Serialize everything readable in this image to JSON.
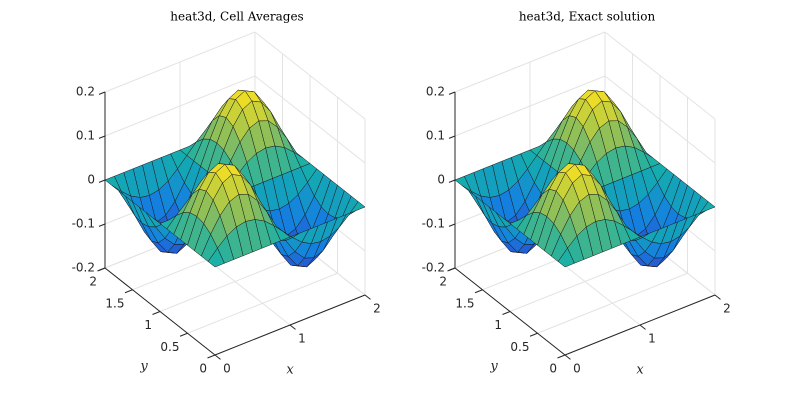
{
  "chart_data": [
    {
      "type": "surface",
      "title": "heat3d, Cell Averages",
      "xlabel": "x",
      "ylabel": "y",
      "x": [
        0,
        0.125,
        0.25,
        0.375,
        0.5,
        0.625,
        0.75,
        0.875,
        1,
        1.125,
        1.25,
        1.375,
        1.5,
        1.625,
        1.75,
        1.875,
        2
      ],
      "y": [
        0,
        0.125,
        0.25,
        0.375,
        0.5,
        0.625,
        0.75,
        0.875,
        1,
        1.125,
        1.25,
        1.375,
        1.5,
        1.625,
        1.75,
        1.875,
        2
      ],
      "z": [
        [
          0,
          0,
          0,
          0,
          0,
          0,
          0,
          0,
          0,
          0,
          0,
          0,
          0,
          0,
          0,
          0,
          0
        ],
        [
          0,
          0.022,
          0.041,
          0.053,
          0.057,
          0.053,
          0.041,
          0.022,
          0,
          -0.022,
          -0.041,
          -0.053,
          -0.057,
          -0.053,
          -0.041,
          -0.022,
          0
        ],
        [
          0,
          0.041,
          0.075,
          0.098,
          0.106,
          0.098,
          0.075,
          0.041,
          0,
          -0.041,
          -0.075,
          -0.098,
          -0.106,
          -0.098,
          -0.075,
          -0.041,
          0
        ],
        [
          0,
          0.053,
          0.098,
          0.128,
          0.139,
          0.128,
          0.098,
          0.053,
          0,
          -0.053,
          -0.098,
          -0.128,
          -0.139,
          -0.128,
          -0.098,
          -0.053,
          0
        ],
        [
          0,
          0.057,
          0.106,
          0.139,
          0.15,
          0.139,
          0.106,
          0.057,
          0,
          -0.057,
          -0.106,
          -0.139,
          -0.15,
          -0.139,
          -0.106,
          -0.057,
          0
        ],
        [
          0,
          0.053,
          0.098,
          0.128,
          0.139,
          0.128,
          0.098,
          0.053,
          0,
          -0.053,
          -0.098,
          -0.128,
          -0.139,
          -0.128,
          -0.098,
          -0.053,
          0
        ],
        [
          0,
          0.041,
          0.075,
          0.098,
          0.106,
          0.098,
          0.075,
          0.041,
          0,
          -0.041,
          -0.075,
          -0.098,
          -0.106,
          -0.098,
          -0.075,
          -0.041,
          0
        ],
        [
          0,
          0.022,
          0.041,
          0.053,
          0.057,
          0.053,
          0.041,
          0.022,
          0,
          -0.022,
          -0.041,
          -0.053,
          -0.057,
          -0.053,
          -0.041,
          -0.022,
          0
        ],
        [
          0,
          0,
          0,
          0,
          0,
          0,
          0,
          0,
          0,
          0,
          0,
          0,
          0,
          0,
          0,
          0,
          0
        ],
        [
          0,
          -0.022,
          -0.041,
          -0.053,
          -0.057,
          -0.053,
          -0.041,
          -0.022,
          0,
          0.022,
          0.041,
          0.053,
          0.057,
          0.053,
          0.041,
          0.022,
          0
        ],
        [
          0,
          -0.041,
          -0.075,
          -0.098,
          -0.106,
          -0.098,
          -0.075,
          -0.041,
          0,
          0.041,
          0.075,
          0.098,
          0.106,
          0.098,
          0.075,
          0.041,
          0
        ],
        [
          0,
          -0.053,
          -0.098,
          -0.128,
          -0.139,
          -0.128,
          -0.098,
          -0.053,
          0,
          0.053,
          0.098,
          0.128,
          0.139,
          0.128,
          0.098,
          0.053,
          0
        ],
        [
          0,
          -0.057,
          -0.106,
          -0.139,
          -0.15,
          -0.139,
          -0.106,
          -0.057,
          0,
          0.057,
          0.106,
          0.139,
          0.15,
          0.139,
          0.106,
          0.057,
          0
        ],
        [
          0,
          -0.053,
          -0.098,
          -0.128,
          -0.139,
          -0.128,
          -0.098,
          -0.053,
          0,
          0.053,
          0.098,
          0.128,
          0.139,
          0.128,
          0.098,
          0.053,
          0
        ],
        [
          0,
          -0.041,
          -0.075,
          -0.098,
          -0.106,
          -0.098,
          -0.075,
          -0.041,
          0,
          0.041,
          0.075,
          0.098,
          0.106,
          0.098,
          0.075,
          0.041,
          0
        ],
        [
          0,
          -0.022,
          -0.041,
          -0.053,
          -0.057,
          -0.053,
          -0.041,
          -0.022,
          0,
          0.022,
          0.041,
          0.053,
          0.057,
          0.053,
          0.041,
          0.022,
          0
        ],
        [
          0,
          0,
          0,
          0,
          0,
          0,
          0,
          0,
          0,
          0,
          0,
          0,
          0,
          0,
          0,
          0,
          0
        ]
      ],
      "xlim": [
        0,
        2
      ],
      "ylim": [
        0,
        2
      ],
      "zlim": [
        -0.2,
        0.2
      ],
      "xticks": [
        0,
        1,
        2
      ],
      "yticks": [
        0,
        0.5,
        1,
        1.5,
        2
      ],
      "zticks": [
        -0.2,
        -0.1,
        0,
        0.1,
        0.2
      ],
      "grid": true,
      "colormap": "parula"
    },
    {
      "type": "surface",
      "title": "heat3d, Exact solution",
      "xlabel": "x",
      "ylabel": "y",
      "x": [
        0,
        0.125,
        0.25,
        0.375,
        0.5,
        0.625,
        0.75,
        0.875,
        1,
        1.125,
        1.25,
        1.375,
        1.5,
        1.625,
        1.75,
        1.875,
        2
      ],
      "y": [
        0,
        0.125,
        0.25,
        0.375,
        0.5,
        0.625,
        0.75,
        0.875,
        1,
        1.125,
        1.25,
        1.375,
        1.5,
        1.625,
        1.75,
        1.875,
        2
      ],
      "z": [
        [
          0,
          0,
          0,
          0,
          0,
          0,
          0,
          0,
          0,
          0,
          0,
          0,
          0,
          0,
          0,
          0,
          0
        ],
        [
          0,
          0.022,
          0.041,
          0.053,
          0.057,
          0.053,
          0.041,
          0.022,
          0,
          -0.022,
          -0.041,
          -0.053,
          -0.057,
          -0.053,
          -0.041,
          -0.022,
          0
        ],
        [
          0,
          0.041,
          0.075,
          0.098,
          0.106,
          0.098,
          0.075,
          0.041,
          0,
          -0.041,
          -0.075,
          -0.098,
          -0.106,
          -0.098,
          -0.075,
          -0.041,
          0
        ],
        [
          0,
          0.053,
          0.098,
          0.128,
          0.139,
          0.128,
          0.098,
          0.053,
          0,
          -0.053,
          -0.098,
          -0.128,
          -0.139,
          -0.128,
          -0.098,
          -0.053,
          0
        ],
        [
          0,
          0.057,
          0.106,
          0.139,
          0.15,
          0.139,
          0.106,
          0.057,
          0,
          -0.057,
          -0.106,
          -0.139,
          -0.15,
          -0.139,
          -0.106,
          -0.057,
          0
        ],
        [
          0,
          0.053,
          0.098,
          0.128,
          0.139,
          0.128,
          0.098,
          0.053,
          0,
          -0.053,
          -0.098,
          -0.128,
          -0.139,
          -0.128,
          -0.098,
          -0.053,
          0
        ],
        [
          0,
          0.041,
          0.075,
          0.098,
          0.106,
          0.098,
          0.075,
          0.041,
          0,
          -0.041,
          -0.075,
          -0.098,
          -0.106,
          -0.098,
          -0.075,
          -0.041,
          0
        ],
        [
          0,
          0.022,
          0.041,
          0.053,
          0.057,
          0.053,
          0.041,
          0.022,
          0,
          -0.022,
          -0.041,
          -0.053,
          -0.057,
          -0.053,
          -0.041,
          -0.022,
          0
        ],
        [
          0,
          0,
          0,
          0,
          0,
          0,
          0,
          0,
          0,
          0,
          0,
          0,
          0,
          0,
          0,
          0,
          0
        ],
        [
          0,
          -0.022,
          -0.041,
          -0.053,
          -0.057,
          -0.053,
          -0.041,
          -0.022,
          0,
          0.022,
          0.041,
          0.053,
          0.057,
          0.053,
          0.041,
          0.022,
          0
        ],
        [
          0,
          -0.041,
          -0.075,
          -0.098,
          -0.106,
          -0.098,
          -0.075,
          -0.041,
          0,
          0.041,
          0.075,
          0.098,
          0.106,
          0.098,
          0.075,
          0.041,
          0
        ],
        [
          0,
          -0.053,
          -0.098,
          -0.128,
          -0.139,
          -0.128,
          -0.098,
          -0.053,
          0,
          0.053,
          0.098,
          0.128,
          0.139,
          0.128,
          0.098,
          0.053,
          0
        ],
        [
          0,
          -0.057,
          -0.106,
          -0.139,
          -0.15,
          -0.139,
          -0.106,
          -0.057,
          0,
          0.057,
          0.106,
          0.139,
          0.15,
          0.139,
          0.106,
          0.057,
          0
        ],
        [
          0,
          -0.053,
          -0.098,
          -0.128,
          -0.139,
          -0.128,
          -0.098,
          -0.053,
          0,
          0.053,
          0.098,
          0.128,
          0.139,
          0.128,
          0.098,
          0.053,
          0
        ],
        [
          0,
          -0.041,
          -0.075,
          -0.098,
          -0.106,
          -0.098,
          -0.075,
          -0.041,
          0,
          0.041,
          0.075,
          0.098,
          0.106,
          0.098,
          0.075,
          0.041,
          0
        ],
        [
          0,
          -0.022,
          -0.041,
          -0.053,
          -0.057,
          -0.053,
          -0.041,
          -0.022,
          0,
          0.022,
          0.041,
          0.053,
          0.057,
          0.053,
          0.041,
          0.022,
          0
        ],
        [
          0,
          0,
          0,
          0,
          0,
          0,
          0,
          0,
          0,
          0,
          0,
          0,
          0,
          0,
          0,
          0,
          0
        ]
      ],
      "xlim": [
        0,
        2
      ],
      "ylim": [
        0,
        2
      ],
      "zlim": [
        -0.2,
        0.2
      ],
      "xticks": [
        0,
        1,
        2
      ],
      "yticks": [
        0,
        0.5,
        1,
        1.5,
        2
      ],
      "zticks": [
        -0.2,
        -0.1,
        0,
        0.1,
        0.2
      ],
      "grid": true,
      "colormap": "parula"
    }
  ]
}
